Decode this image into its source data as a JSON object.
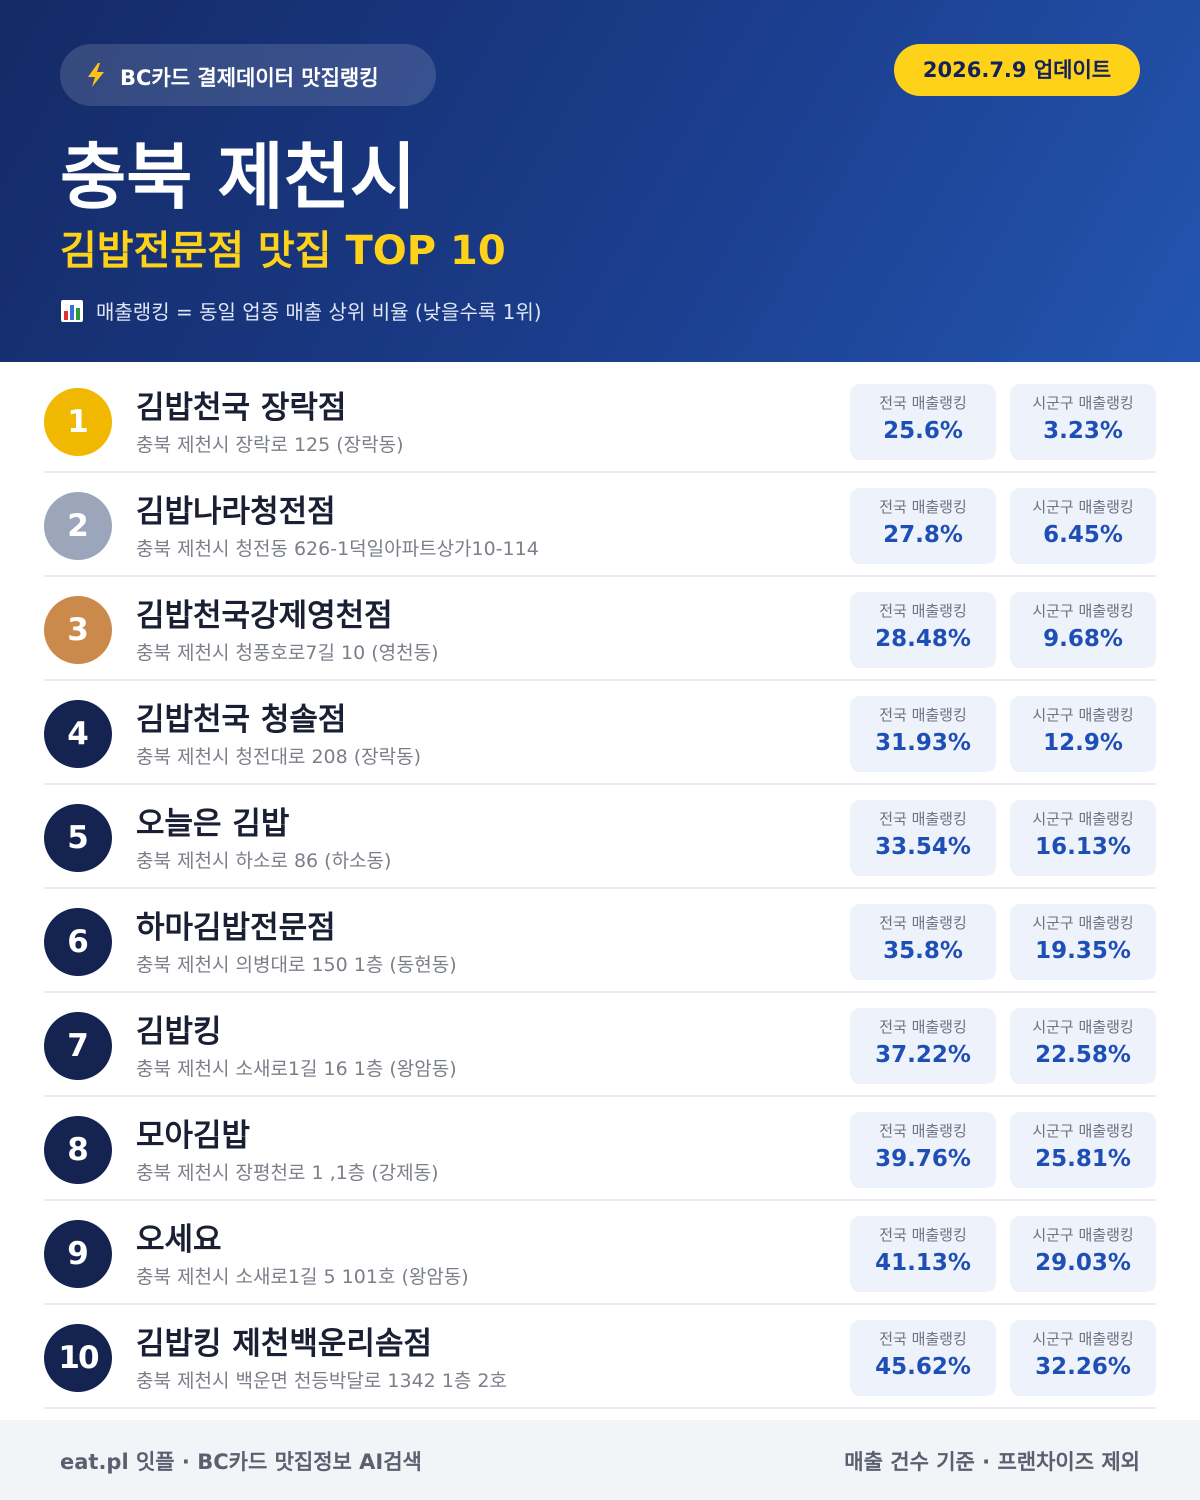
{
  "header": {
    "badge": "BC카드 결제데이터 맛집랭킹",
    "update": "2026.7.9 업데이트",
    "title": "충북 제천시",
    "subtitle": "김밥전문점 맛집 TOP 10",
    "note": "매출랭킹 = 동일 업종 매출 상위 비율 (낮을수록 1위)"
  },
  "labels": {
    "national": "전국 매출랭킹",
    "local": "시군구 매출랭킹"
  },
  "list": [
    {
      "rank": 1,
      "color": "#f0b800",
      "name": "김밥천국 장락점",
      "address": "충북 제천시 장락로 125 (장락동)",
      "national": "25.6%",
      "local": "3.23%"
    },
    {
      "rank": 2,
      "color": "#9ba6ba",
      "name": "김밥나라청전점",
      "address": "충북 제천시 청전동 626-1덕일아파트상가10-114",
      "national": "27.8%",
      "local": "6.45%"
    },
    {
      "rank": 3,
      "color": "#cb8a4c",
      "name": "김밥천국강제영천점",
      "address": "충북 제천시 청풍호로7길 10 (영천동)",
      "national": "28.48%",
      "local": "9.68%"
    },
    {
      "rank": 4,
      "color": "#14234f",
      "name": "김밥천국 청솔점",
      "address": "충북 제천시 청전대로 208 (장락동)",
      "national": "31.93%",
      "local": "12.9%"
    },
    {
      "rank": 5,
      "color": "#14234f",
      "name": "오늘은 김밥",
      "address": "충북 제천시 하소로 86 (하소동)",
      "national": "33.54%",
      "local": "16.13%"
    },
    {
      "rank": 6,
      "color": "#14234f",
      "name": "하마김밥전문점",
      "address": "충북 제천시 의병대로 150 1층 (동현동)",
      "national": "35.8%",
      "local": "19.35%"
    },
    {
      "rank": 7,
      "color": "#14234f",
      "name": "김밥킹",
      "address": "충북 제천시 소새로1길 16 1층 (왕암동)",
      "national": "37.22%",
      "local": "22.58%"
    },
    {
      "rank": 8,
      "color": "#14234f",
      "name": "모아김밥",
      "address": "충북 제천시 장평천로 1 ,1층 (강제동)",
      "national": "39.76%",
      "local": "25.81%"
    },
    {
      "rank": 9,
      "color": "#14234f",
      "name": "오세요",
      "address": "충북 제천시 소새로1길 5 101호 (왕암동)",
      "national": "41.13%",
      "local": "29.03%"
    },
    {
      "rank": 10,
      "color": "#14234f",
      "name": "김밥킹 제천백운리솜점",
      "address": "충북 제천시 백운면 천등박달로 1342 1층 2호",
      "national": "45.62%",
      "local": "32.26%"
    }
  ],
  "footer": {
    "left": "eat.pl 잇플 · BC카드 맛집정보 AI검색",
    "right": "매출 건수 기준 · 프랜차이즈 제외"
  }
}
